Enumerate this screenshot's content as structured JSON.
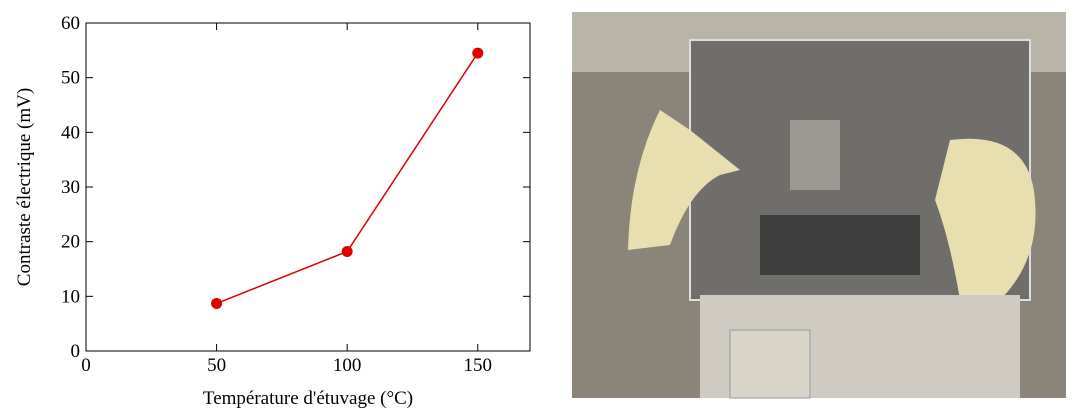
{
  "chart_data": {
    "type": "line",
    "x_label": "Température d'étuvage (°C)",
    "y_label": "Contraste électrique (mV)",
    "x": [
      50,
      100,
      150
    ],
    "series": [
      {
        "color": "#e00000",
        "values": [
          8.7,
          18.2,
          54.5
        ]
      }
    ],
    "xlim": [
      0,
      170
    ],
    "xticks": [
      0,
      50,
      100,
      150
    ],
    "ylim": [
      0,
      60
    ],
    "yticks": [
      0,
      10,
      20,
      30,
      40,
      50,
      60
    ]
  }
}
